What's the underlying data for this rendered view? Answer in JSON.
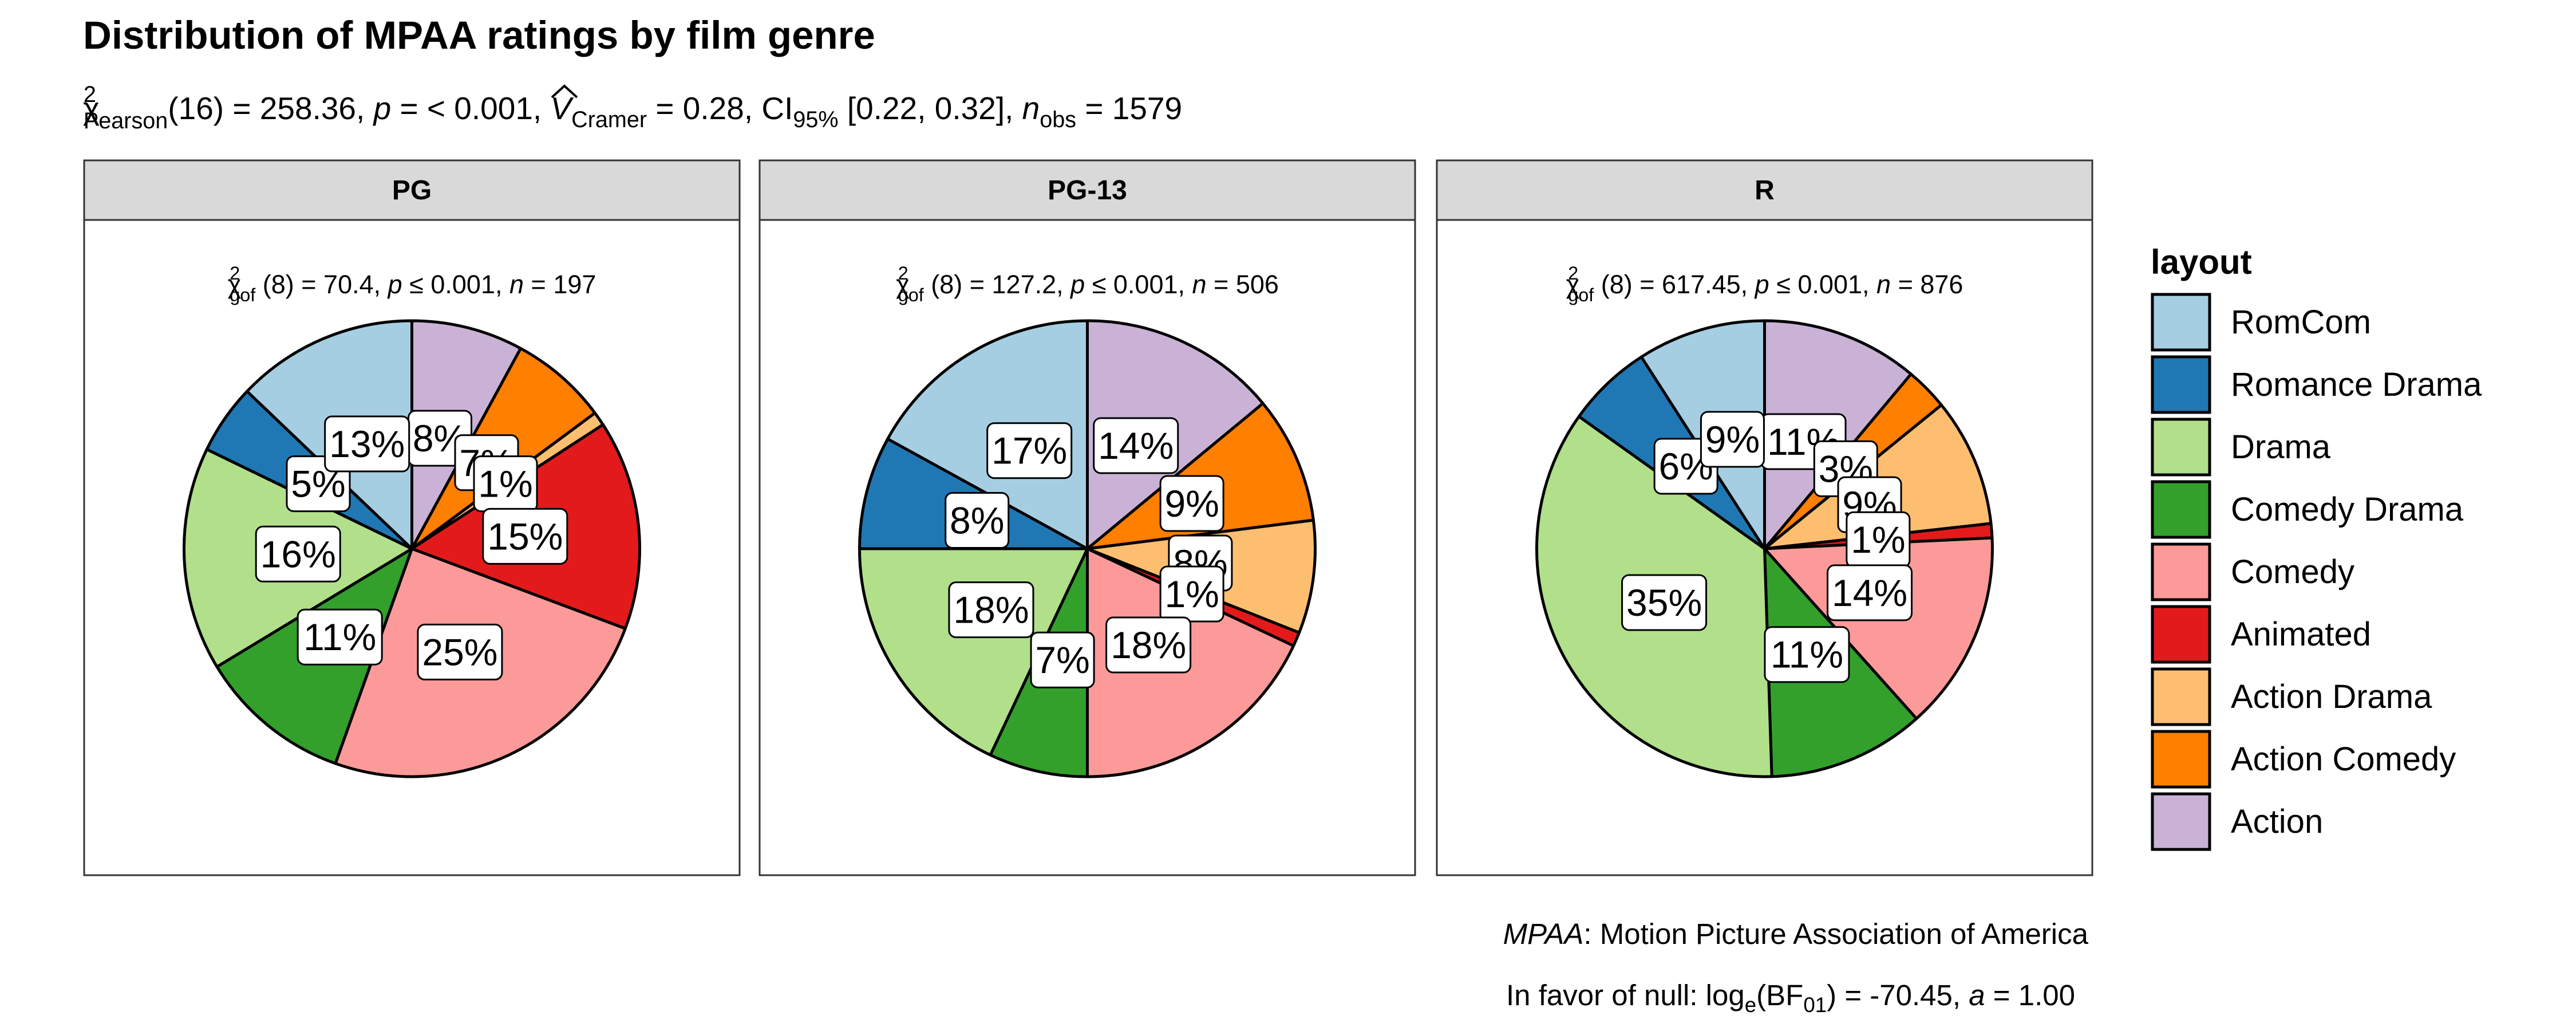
{
  "title": "Distribution of MPAA ratings by film genre",
  "subtitle": {
    "chi": "χ",
    "sup": "2",
    "sub": "Pearson",
    "part1": "(16) = 258.36, ",
    "p_sym": "p",
    "part2": " = < 0.001, ",
    "v_sym": "V",
    "v_sub": "Cramer",
    "part3": " = 0.28, CI",
    "ci_sub": "95%",
    "part4": " [0.22, 0.32], ",
    "n_sym": "n",
    "n_sub": "obs",
    "part5": " = 1579"
  },
  "colors": {
    "RomCom": "#A6CEE3",
    "Romance Drama": "#1F78B4",
    "Drama": "#B2DF8A",
    "Comedy Drama": "#33A02C",
    "Comedy": "#FB9A99",
    "Animated": "#E31A1C",
    "Action Drama": "#FDBF6F",
    "Action Comedy": "#FF7F00",
    "Action": "#CAB2D6",
    "strip_bg": "#D9D9D9"
  },
  "chart_data": {
    "type": "pie",
    "categories": [
      "Action",
      "Action Comedy",
      "Action Drama",
      "Animated",
      "Comedy",
      "Comedy Drama",
      "Drama",
      "Romance Drama",
      "RomCom"
    ],
    "facets": [
      {
        "name": "PG",
        "gof": {
          "chi": "χ",
          "sup": "2",
          "sub": "gof",
          "df": " (8) = 70.4, ",
          "p_sym": "p",
          "p_text": " ≤ 0.001, ",
          "n_sym": "n",
          "n_text": " = 197"
        },
        "values": [
          8,
          7,
          1,
          15,
          25,
          11,
          16,
          5,
          13
        ],
        "labels": [
          "8%",
          "7%",
          "1%",
          "15%",
          "25%",
          "11%",
          "16%",
          "5%",
          "13%"
        ]
      },
      {
        "name": "PG-13",
        "gof": {
          "chi": "χ",
          "sup": "2",
          "sub": "gof",
          "df": " (8) = 127.2, ",
          "p_sym": "p",
          "p_text": " ≤ 0.001, ",
          "n_sym": "n",
          "n_text": " = 506"
        },
        "values": [
          14,
          9,
          8,
          1,
          18,
          7,
          18,
          8,
          17
        ],
        "labels": [
          "14%",
          "9%",
          "8%",
          "1%",
          "18%",
          "7%",
          "18%",
          "8%",
          "17%"
        ]
      },
      {
        "name": "R",
        "gof": {
          "chi": "χ",
          "sup": "2",
          "sub": "gof",
          "df": " (8) = 617.45, ",
          "p_sym": "p",
          "p_text": " ≤ 0.001, ",
          "n_sym": "n",
          "n_text": " = 876"
        },
        "values": [
          11,
          3,
          9,
          1,
          14,
          11,
          35,
          6,
          9
        ],
        "labels": [
          "11%",
          "3%",
          "9%",
          "1%",
          "14%",
          "11%",
          "35%",
          "6%",
          "9%"
        ]
      }
    ],
    "legend": {
      "title": "layout",
      "position": "right",
      "entries": [
        "RomCom",
        "Romance Drama",
        "Drama",
        "Comedy Drama",
        "Comedy",
        "Animated",
        "Action Drama",
        "Action Comedy",
        "Action"
      ]
    }
  },
  "caption": {
    "line1_italic": "MPAA",
    "line1_rest": ": Motion Picture Association of America",
    "line2_a": "In favor of null: log",
    "line2_sub_e": "e",
    "line2_b": "(BF",
    "line2_sub_01": "01",
    "line2_c": ") = -70.45, ",
    "line2_a_sym": "a",
    "line2_d": " = 1.00"
  }
}
